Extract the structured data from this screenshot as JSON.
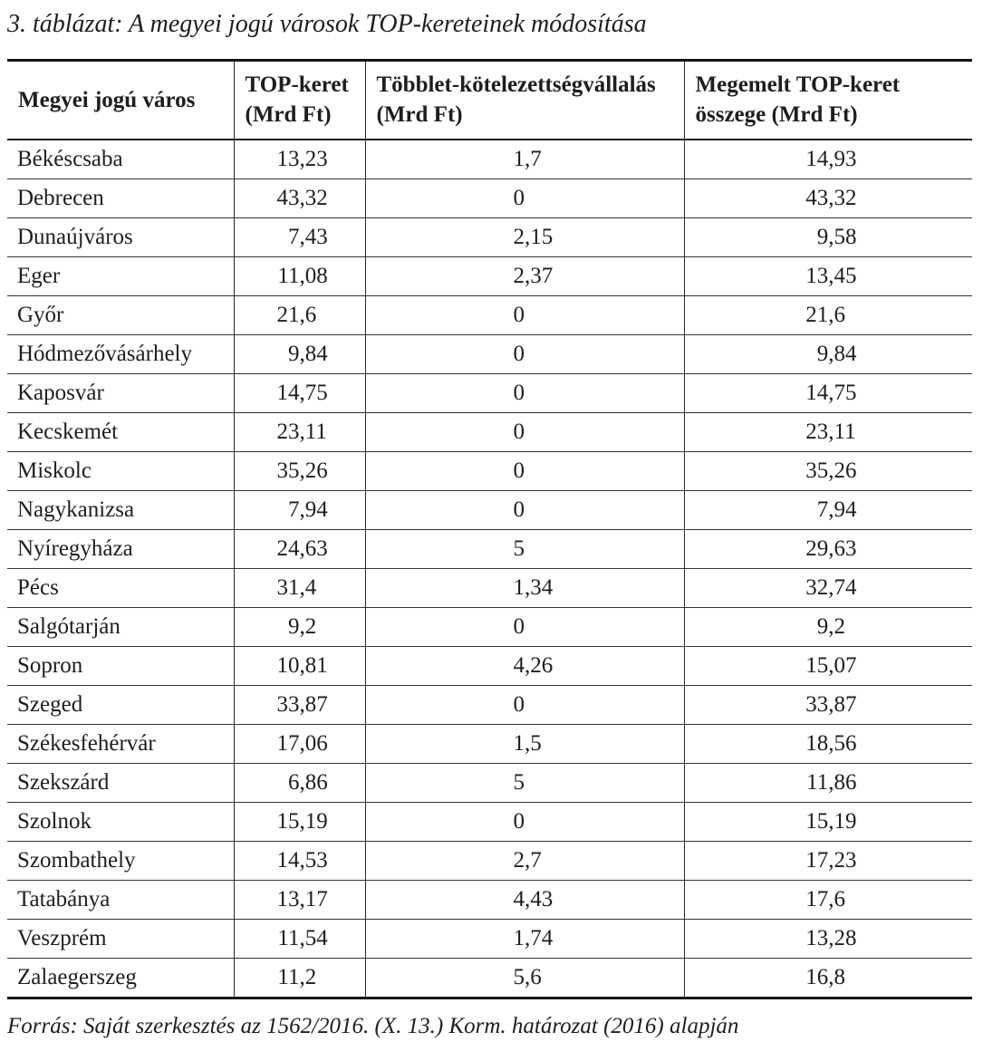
{
  "title": "3. táblázat: A megyei jogú városok TOP-kereteinek módosítása",
  "source": "Forrás: Saját szerkesztés az 1562/2016. (X. 13.) Korm. határozat (2016) alapján",
  "colors": {
    "text": "#1e1e1e",
    "rule_heavy": "#161616",
    "rule_light": "#333333",
    "background": "#ffffff"
  },
  "table": {
    "headers": [
      {
        "line1": "Megyei jogú város",
        "line2": ""
      },
      {
        "line1": "TOP-keret",
        "line2": "(Mrd Ft)"
      },
      {
        "line1": "Többlet-kötelezettségvállalás",
        "line2": "(Mrd Ft)"
      },
      {
        "line1": "Megemelt TOP-keret",
        "line2": "összege (Mrd Ft)"
      }
    ],
    "rows": [
      {
        "city": "Békéscsaba",
        "top_keret": "13,23",
        "tobblet": "1,7",
        "megemelt": "14,93"
      },
      {
        "city": "Debrecen",
        "top_keret": "43,32",
        "tobblet": "0",
        "megemelt": "43,32"
      },
      {
        "city": "Dunaújváros",
        "top_keret": "7,43",
        "tobblet": "2,15",
        "megemelt": "9,58"
      },
      {
        "city": "Eger",
        "top_keret": "11,08",
        "tobblet": "2,37",
        "megemelt": "13,45"
      },
      {
        "city": "Győr",
        "top_keret": "21,6",
        "tobblet": "0",
        "megemelt": "21,6"
      },
      {
        "city": "Hódmezővásárhely",
        "top_keret": "9,84",
        "tobblet": "0",
        "megemelt": "9,84"
      },
      {
        "city": "Kaposvár",
        "top_keret": "14,75",
        "tobblet": "0",
        "megemelt": "14,75"
      },
      {
        "city": "Kecskemét",
        "top_keret": "23,11",
        "tobblet": "0",
        "megemelt": "23,11"
      },
      {
        "city": "Miskolc",
        "top_keret": "35,26",
        "tobblet": "0",
        "megemelt": "35,26"
      },
      {
        "city": "Nagykanizsa",
        "top_keret": "7,94",
        "tobblet": "0",
        "megemelt": "7,94"
      },
      {
        "city": "Nyíregyháza",
        "top_keret": "24,63",
        "tobblet": "5",
        "megemelt": "29,63"
      },
      {
        "city": "Pécs",
        "top_keret": "31,4",
        "tobblet": "1,34",
        "megemelt": "32,74"
      },
      {
        "city": "Salgótarján",
        "top_keret": "9,2",
        "tobblet": "0",
        "megemelt": "9,2"
      },
      {
        "city": "Sopron",
        "top_keret": "10,81",
        "tobblet": "4,26",
        "megemelt": "15,07"
      },
      {
        "city": "Szeged",
        "top_keret": "33,87",
        "tobblet": "0",
        "megemelt": "33,87"
      },
      {
        "city": "Székesfehérvár",
        "top_keret": "17,06",
        "tobblet": "1,5",
        "megemelt": "18,56"
      },
      {
        "city": "Szekszárd",
        "top_keret": "6,86",
        "tobblet": "5",
        "megemelt": "11,86"
      },
      {
        "city": "Szolnok",
        "top_keret": "15,19",
        "tobblet": "0",
        "megemelt": "15,19"
      },
      {
        "city": "Szombathely",
        "top_keret": "14,53",
        "tobblet": "2,7",
        "megemelt": "17,23"
      },
      {
        "city": "Tatabánya",
        "top_keret": "13,17",
        "tobblet": "4,43",
        "megemelt": "17,6"
      },
      {
        "city": "Veszprém",
        "top_keret": "11,54",
        "tobblet": "1,74",
        "megemelt": "13,28"
      },
      {
        "city": "Zalaegerszeg",
        "top_keret": "11,2",
        "tobblet": "5,6",
        "megemelt": "16,8"
      }
    ]
  }
}
